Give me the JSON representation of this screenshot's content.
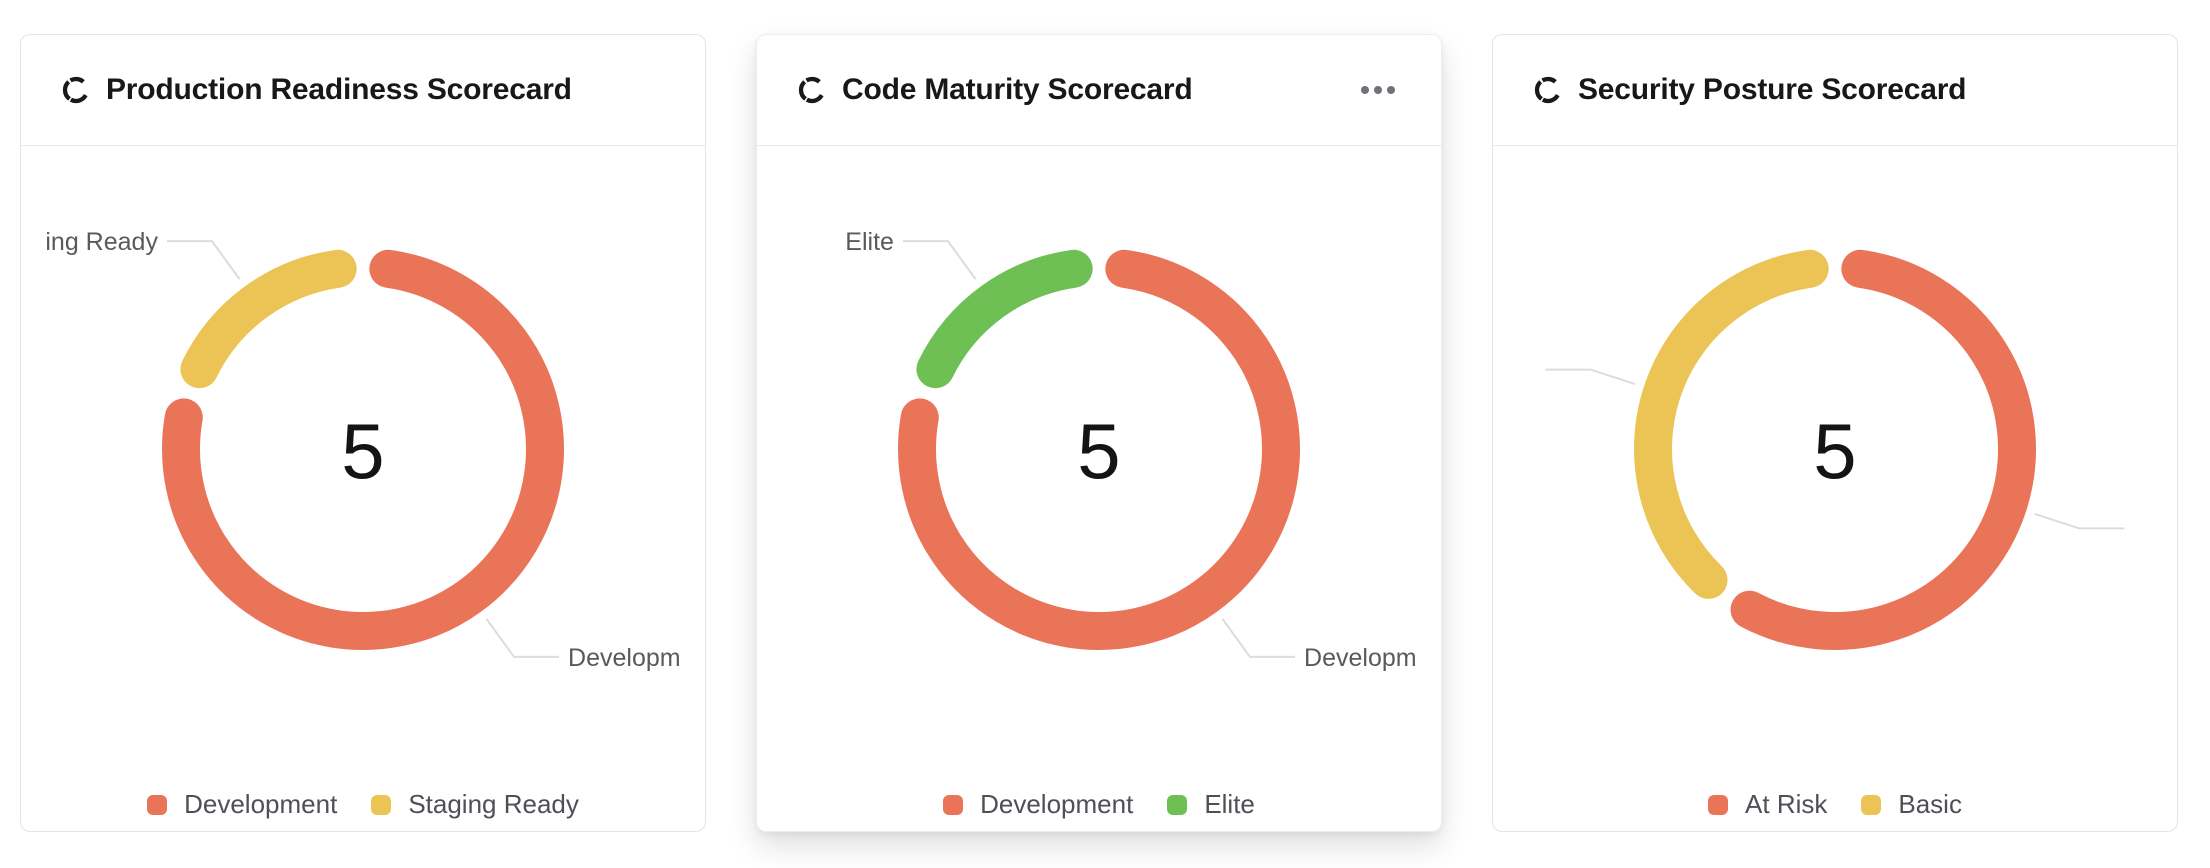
{
  "page": {
    "background": "#ffffff"
  },
  "colors": {
    "development": "#EA7458",
    "staging_ready": "#ECC455",
    "elite": "#6EC055",
    "at_risk": "#EA7458",
    "basic": "#ECC455",
    "callout_line": "#dcdcdc",
    "title_text": "#18181b",
    "legend_text": "#4f4f56",
    "callout_text": "#5a5a5a",
    "menu_dots": "#71717a"
  },
  "cards": [
    {
      "title": "Production Readiness Scorecard",
      "has_menu": false
    },
    {
      "title": "Code Maturity Scorecard",
      "has_menu": true,
      "menu_icon": "ellipsis"
    },
    {
      "title": "Security Posture Scorecard",
      "has_menu": false
    }
  ],
  "chart_data": [
    {
      "type": "pie",
      "subtype": "donut",
      "title": "Production Readiness Scorecard",
      "center_label": "5",
      "total": 5,
      "segments": [
        {
          "label": "Development",
          "value": 4,
          "color": "#EA7458",
          "callout_text_visible": true
        },
        {
          "label": "Staging Ready",
          "value": 1,
          "color": "#ECC455",
          "callout_text_visible": true
        }
      ],
      "legend": [
        "Development",
        "Staging Ready"
      ],
      "legend_position": "bottom",
      "labels": "outside-callout"
    },
    {
      "type": "pie",
      "subtype": "donut",
      "title": "Code Maturity Scorecard",
      "center_label": "5",
      "total": 5,
      "segments": [
        {
          "label": "Development",
          "value": 4,
          "color": "#EA7458",
          "callout_text_visible": true
        },
        {
          "label": "Elite",
          "value": 1,
          "color": "#6EC055",
          "callout_text_visible": true
        }
      ],
      "legend": [
        "Development",
        "Elite"
      ],
      "legend_position": "bottom",
      "labels": "outside-callout"
    },
    {
      "type": "pie",
      "subtype": "donut",
      "title": "Security Posture Scorecard",
      "center_label": "5",
      "total": 5,
      "segments": [
        {
          "label": "At Risk",
          "value": 3,
          "color": "#EA7458",
          "callout_text_visible": false
        },
        {
          "label": "Basic",
          "value": 2,
          "color": "#ECC455",
          "callout_text_visible": false
        }
      ],
      "legend": [
        "At Risk",
        "Basic"
      ],
      "legend_position": "bottom",
      "labels": "outside-callout"
    }
  ]
}
